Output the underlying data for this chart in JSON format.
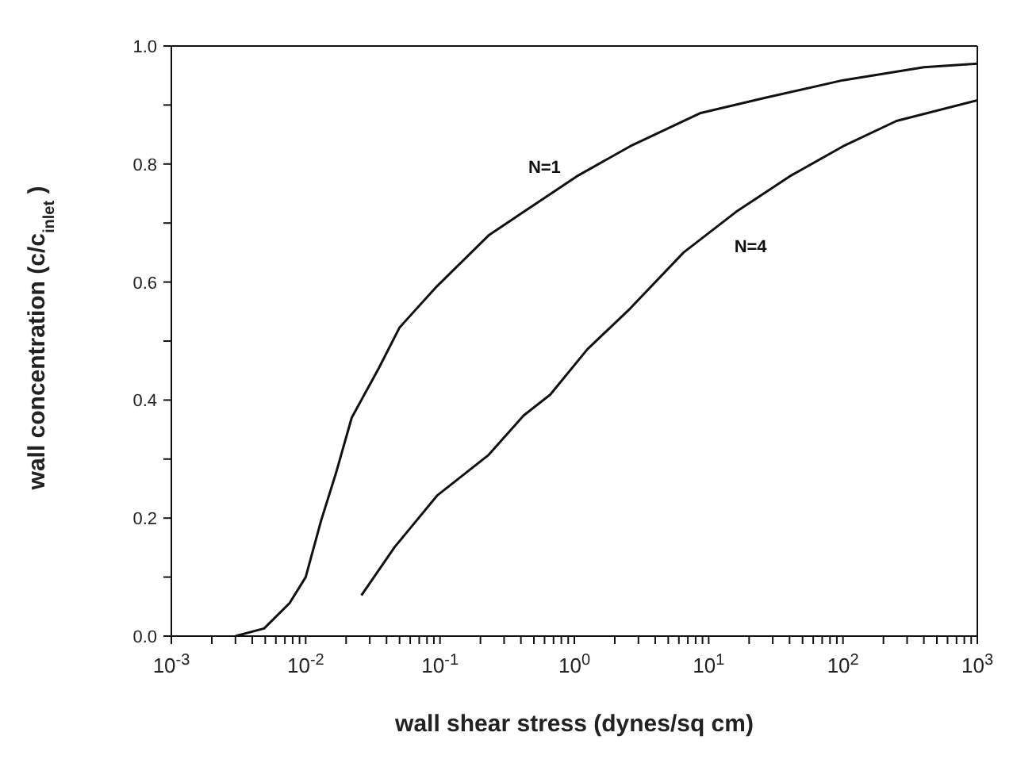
{
  "chart_data": {
    "type": "line",
    "xlabel": "wall shear stress (dynes/sq cm)",
    "ylabel": "wall concentration  (c/c$_{inlet}$ )",
    "log": "x",
    "marker": "none",
    "line_style": "solid",
    "xlim": [
      0.001,
      1000
    ],
    "xticks": [
      {
        "value": 0.001,
        "label": "10$^{-3}$"
      },
      {
        "value": 0.002,
        "label": null
      },
      {
        "value": 0.003,
        "label": null
      },
      {
        "value": 0.004,
        "label": null
      },
      {
        "value": 0.005,
        "label": null
      },
      {
        "value": 0.006,
        "label": null
      },
      {
        "value": 0.007,
        "label": null
      },
      {
        "value": 0.008,
        "label": null
      },
      {
        "value": 0.009,
        "label": null
      },
      {
        "value": 0.01,
        "label": "10$^{-2}$"
      },
      {
        "value": 0.02,
        "label": null
      },
      {
        "value": 0.03,
        "label": null
      },
      {
        "value": 0.04,
        "label": null
      },
      {
        "value": 0.05,
        "label": null
      },
      {
        "value": 0.06,
        "label": null
      },
      {
        "value": 0.07,
        "label": null
      },
      {
        "value": 0.08,
        "label": null
      },
      {
        "value": 0.09,
        "label": null
      },
      {
        "value": 0.1,
        "label": "10$^{-1}$"
      },
      {
        "value": 0.2,
        "label": null
      },
      {
        "value": 0.3,
        "label": null
      },
      {
        "value": 0.4,
        "label": null
      },
      {
        "value": 0.5,
        "label": null
      },
      {
        "value": 0.6,
        "label": null
      },
      {
        "value": 0.7,
        "label": null
      },
      {
        "value": 0.8,
        "label": null
      },
      {
        "value": 0.9,
        "label": null
      },
      {
        "value": 1,
        "label": "10$^{0}$"
      },
      {
        "value": 2,
        "label": null
      },
      {
        "value": 3,
        "label": null
      },
      {
        "value": 4,
        "label": null
      },
      {
        "value": 5,
        "label": null
      },
      {
        "value": 6,
        "label": null
      },
      {
        "value": 7,
        "label": null
      },
      {
        "value": 8,
        "label": null
      },
      {
        "value": 9,
        "label": null
      },
      {
        "value": 10,
        "label": "10$^{1}$"
      },
      {
        "value": 20,
        "label": null
      },
      {
        "value": 30,
        "label": null
      },
      {
        "value": 40,
        "label": null
      },
      {
        "value": 50,
        "label": null
      },
      {
        "value": 60,
        "label": null
      },
      {
        "value": 70,
        "label": null
      },
      {
        "value": 80,
        "label": null
      },
      {
        "value": 90,
        "label": null
      },
      {
        "value": 100,
        "label": "10$^{2}$"
      },
      {
        "value": 200,
        "label": null
      },
      {
        "value": 300,
        "label": null
      },
      {
        "value": 400,
        "label": null
      },
      {
        "value": 500,
        "label": null
      },
      {
        "value": 600,
        "label": null
      },
      {
        "value": 700,
        "label": null
      },
      {
        "value": 800,
        "label": null
      },
      {
        "value": 900,
        "label": null
      },
      {
        "value": 1000,
        "label": "10$^{3}$"
      }
    ],
    "ylim": [
      0,
      1
    ],
    "yticks": [
      {
        "value": 0,
        "label": "0.0"
      },
      {
        "value": 0.1,
        "label": null
      },
      {
        "value": 0.2,
        "label": "0.2"
      },
      {
        "value": 0.3,
        "label": null
      },
      {
        "value": 0.4,
        "label": "0.4"
      },
      {
        "value": 0.5,
        "label": null
      },
      {
        "value": 0.6,
        "label": "0.6"
      },
      {
        "value": 0.7,
        "label": null
      },
      {
        "value": 0.8,
        "label": "0.8"
      },
      {
        "value": 0.9,
        "label": null
      },
      {
        "value": 1,
        "label": "1.0"
      }
    ],
    "series": [
      {
        "name": "N=1",
        "color": "#111111",
        "x": [
          0.003,
          0.0049,
          0.0076,
          0.01,
          0.013,
          0.017,
          0.022,
          0.035,
          0.05,
          0.095,
          0.23,
          0.42,
          1.04,
          2.6,
          8.6,
          26,
          100,
          400,
          1000
        ],
        "values": [
          0,
          0.013,
          0.056,
          0.1,
          0.195,
          0.28,
          0.37,
          0.454,
          0.523,
          0.593,
          0.679,
          0.719,
          0.779,
          0.83,
          0.886,
          0.912,
          0.942,
          0.964,
          0.97
        ]
      },
      {
        "name": "N=4",
        "color": "#111111",
        "x": [
          0.026,
          0.046,
          0.095,
          0.23,
          0.42,
          0.66,
          1.25,
          2.6,
          6.5,
          16,
          40,
          100,
          250,
          1000
        ],
        "values": [
          0.069,
          0.151,
          0.238,
          0.307,
          0.374,
          0.409,
          0.486,
          0.555,
          0.65,
          0.719,
          0.779,
          0.83,
          0.873,
          0.908
        ]
      }
    ]
  }
}
